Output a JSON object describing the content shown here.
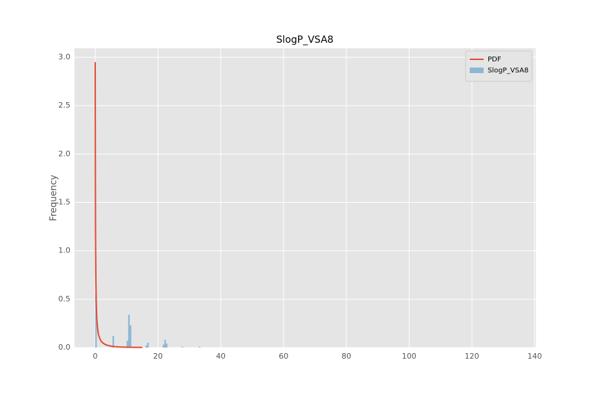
{
  "chart_data": {
    "type": "histogram",
    "title": "SlogP_VSA8",
    "ylabel": "Frequency",
    "xlim": [
      -6.6,
      140.4
    ],
    "ylim": [
      0,
      3.093
    ],
    "xticks": [
      0,
      20,
      40,
      60,
      80,
      100,
      120,
      140
    ],
    "yticks": [
      {
        "value": 0,
        "label": "0.0"
      },
      {
        "value": 0.5,
        "label": "0.5"
      },
      {
        "value": 1,
        "label": "1.0"
      },
      {
        "value": 1.5,
        "label": "1.5"
      },
      {
        "value": 2,
        "label": "2.0"
      },
      {
        "value": 2.5,
        "label": "2.5"
      },
      {
        "value": 3,
        "label": "3.0"
      }
    ],
    "grid": true,
    "legend": "upper right",
    "series": [
      {
        "name": "PDF",
        "type": "line",
        "color": "#e24a33",
        "x": [
          0,
          0.05,
          0.1,
          0.2,
          0.3,
          0.5,
          0.75,
          1,
          1.5,
          2,
          3,
          4,
          5,
          6,
          8,
          10,
          12,
          15
        ],
        "values": [
          2.95,
          1.9,
          1.2,
          0.75,
          0.5,
          0.3,
          0.2,
          0.14,
          0.09,
          0.06,
          0.035,
          0.022,
          0.015,
          0.01,
          0.006,
          0.004,
          0.003,
          0.002
        ]
      },
      {
        "name": "SlogP_VSA8",
        "type": "histogram",
        "color": "#348abd",
        "bins": [
          0,
          0.5,
          1,
          1.5,
          2,
          2.5,
          3,
          3.5,
          4,
          4.5,
          5,
          5.5,
          6,
          6.5,
          7,
          7.5,
          8,
          8.5,
          9,
          9.5,
          10,
          10.5,
          11,
          11.5,
          12,
          12.5,
          13,
          13.5,
          14,
          14.5,
          15,
          15.5,
          16,
          16.5,
          17,
          17.5,
          18,
          18.5,
          19,
          19.5,
          20,
          20.5,
          21,
          21.5,
          22,
          22.5,
          23,
          23.5,
          24,
          24.5,
          25,
          25.5,
          26,
          26.5,
          27,
          27.5,
          28,
          28.5,
          29,
          29.5,
          30,
          30.5,
          31,
          31.5,
          32,
          32.5,
          33,
          33.5,
          34
        ],
        "values": [
          0.55,
          0,
          0,
          0,
          0,
          0,
          0,
          0,
          0,
          0,
          0,
          0.12,
          0,
          0,
          0,
          0,
          0,
          0,
          0,
          0,
          0.07,
          0.34,
          0.23,
          0,
          0,
          0,
          0,
          0,
          0,
          0,
          0,
          0,
          0.02,
          0.05,
          0,
          0,
          0,
          0,
          0,
          0,
          0,
          0,
          0,
          0.03,
          0.08,
          0.04,
          0,
          0,
          0,
          0,
          0,
          0,
          0,
          0,
          0,
          0.01,
          0,
          0,
          0,
          0,
          0,
          0,
          0,
          0,
          0,
          0,
          0.01,
          0
        ]
      }
    ]
  }
}
